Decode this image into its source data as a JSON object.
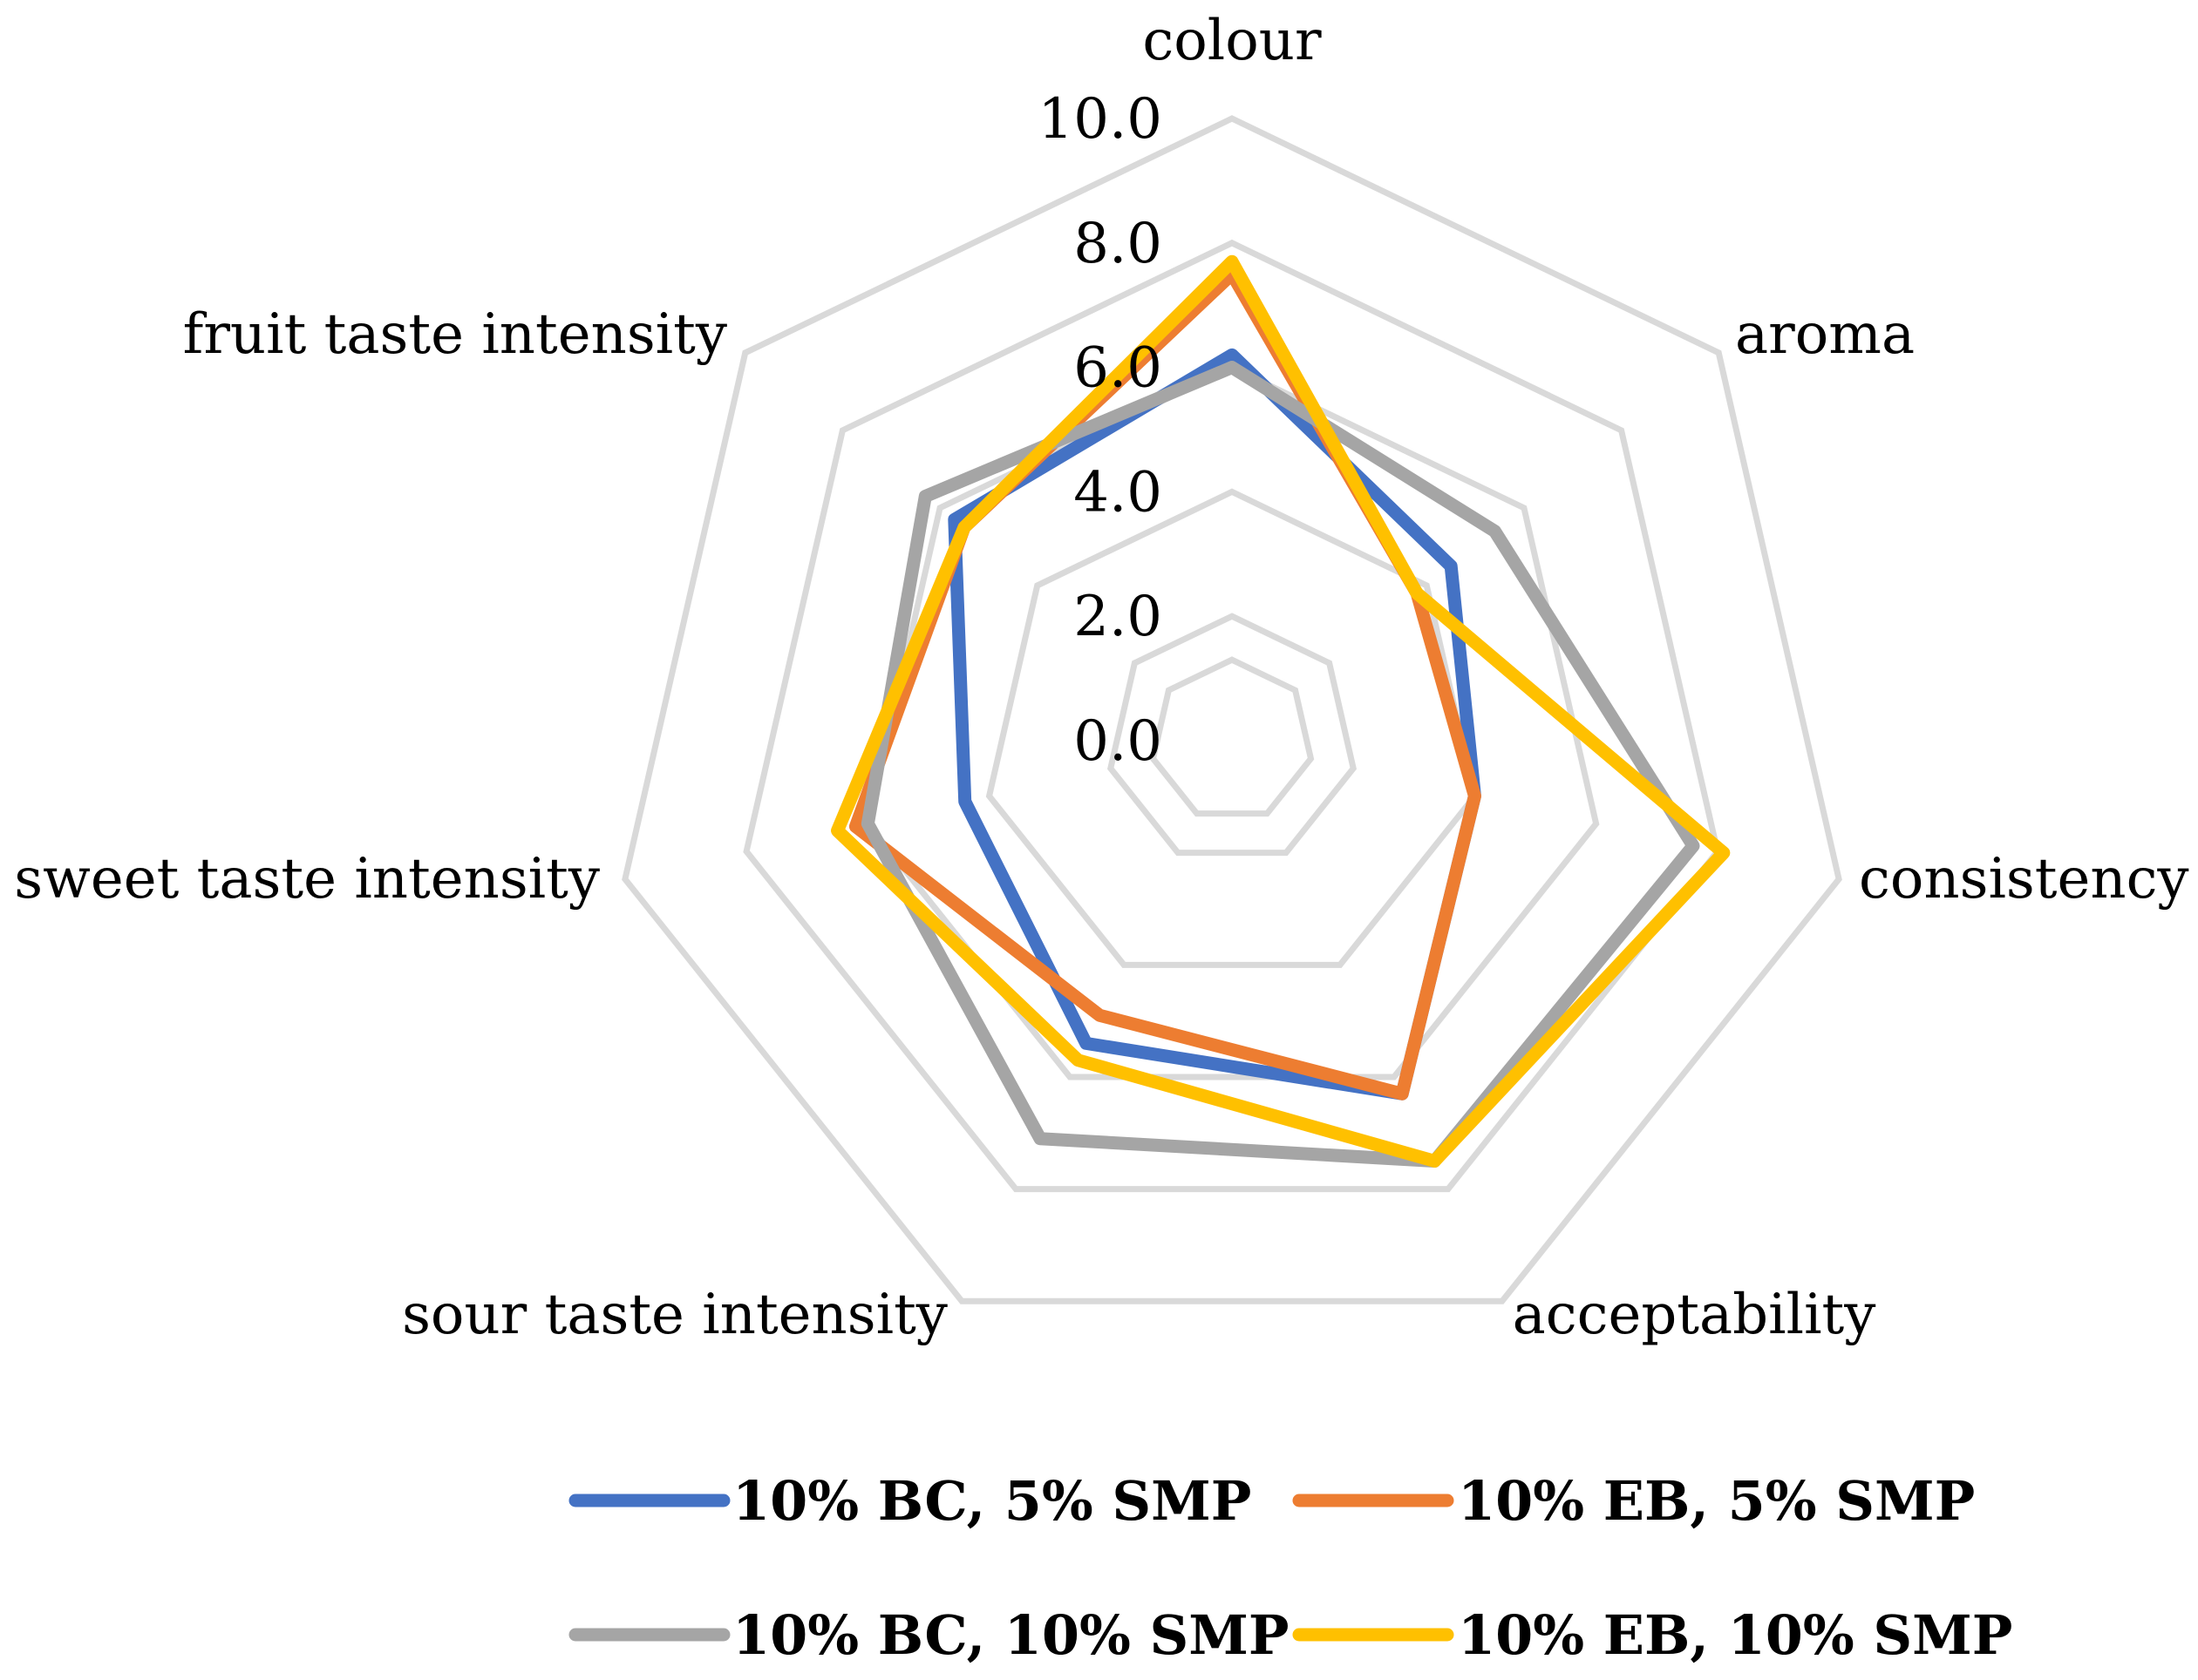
{
  "chart_data": {
    "type": "radar",
    "title": "",
    "axes": [
      "colour",
      "aroma",
      "consistency",
      "acceptability",
      "sour taste intensity",
      "sweet taste intensity",
      "fruit taste intensity"
    ],
    "rlim": [
      0,
      10
    ],
    "ticks": [
      "0.0",
      "2.0",
      "4.0",
      "6.0",
      "8.0",
      "10.0"
    ],
    "tick_values": [
      0,
      2,
      4,
      6,
      8,
      10
    ],
    "grid": true,
    "legend_position": "bottom",
    "series": [
      {
        "name": "10% BC, 5% SMP",
        "color": "#4472c4",
        "values": [
          6.2,
          4.5,
          4.0,
          6.3,
          5.4,
          4.4,
          5.7
        ]
      },
      {
        "name": "10% EB, 5% SMP",
        "color": "#ed7d31",
        "values": [
          7.5,
          3.8,
          4.0,
          6.3,
          4.9,
          6.2,
          5.5
        ]
      },
      {
        "name": "10% BC, 10% SMP",
        "color": "#a5a5a5",
        "values": [
          6.0,
          5.4,
          7.6,
          7.5,
          7.1,
          6.0,
          6.3
        ]
      },
      {
        "name": "10% EB, 10% SMP",
        "color": "#ffc000",
        "values": [
          7.7,
          3.8,
          8.1,
          7.5,
          5.7,
          6.5,
          5.5
        ]
      }
    ]
  }
}
